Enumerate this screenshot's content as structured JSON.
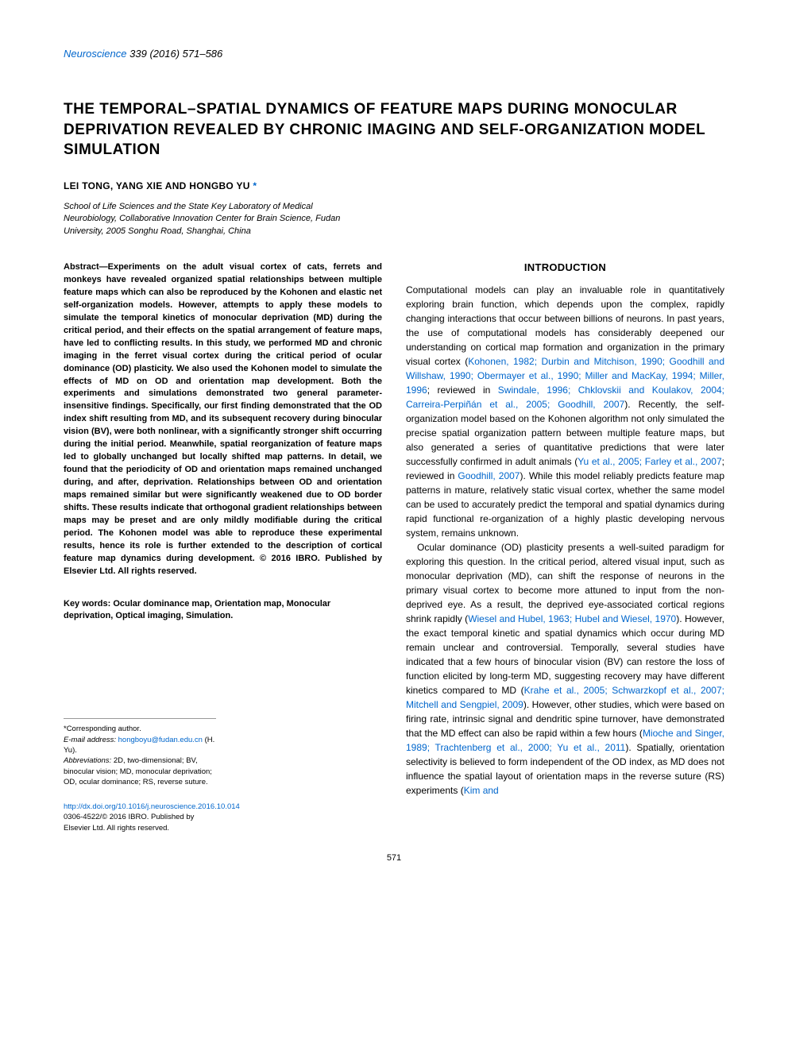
{
  "journal": {
    "name": "Neuroscience",
    "volume": "339",
    "year": "2016",
    "pages": "571–586",
    "name_color": "#0066cc"
  },
  "title": "THE TEMPORAL–SPATIAL DYNAMICS OF FEATURE MAPS DURING MONOCULAR DEPRIVATION REVEALED BY CHRONIC IMAGING AND SELF-ORGANIZATION MODEL SIMULATION",
  "authors_line": "LEI TONG, YANG XIE AND HONGBO YU",
  "corresponding_marker": "*",
  "affiliation": "School of Life Sciences and the State Key Laboratory of Medical Neurobiology, Collaborative Innovation Center for Brain Science, Fudan University, 2005 Songhu Road, Shanghai, China",
  "abstract": {
    "label": "Abstract—",
    "text": "Experiments on the adult visual cortex of cats, ferrets and monkeys have revealed organized spatial relationships between multiple feature maps which can also be reproduced by the Kohonen and elastic net self-organization models. However, attempts to apply these models to simulate the temporal kinetics of monocular deprivation (MD) during the critical period, and their effects on the spatial arrangement of feature maps, have led to conflicting results. In this study, we performed MD and chronic imaging in the ferret visual cortex during the critical period of ocular dominance (OD) plasticity. We also used the Kohonen model to simulate the effects of MD on OD and orientation map development. Both the experiments and simulations demonstrated two general parameter-insensitive findings. Specifically, our first finding demonstrated that the OD index shift resulting from MD, and its subsequent recovery during binocular vision (BV), were both nonlinear, with a significantly stronger shift occurring during the initial period. Meanwhile, spatial reorganization of feature maps led to globally unchanged but locally shifted map patterns. In detail, we found that the periodicity of OD and orientation maps remained unchanged during, and after, deprivation. Relationships between OD and orientation maps remained similar but were significantly weakened due to OD border shifts. These results indicate that orthogonal gradient relationships between maps may be preset and are only mildly modifiable during the critical period. The Kohonen model was able to reproduce these experimental results, hence its role is further extended to the description of cortical feature map dynamics during development. © 2016 IBRO. Published by Elsevier Ltd. All rights reserved."
  },
  "keywords": {
    "label": "Key words:",
    "text": "Ocular dominance map, Orientation map, Monocular deprivation, Optical imaging, Simulation."
  },
  "introduction": {
    "heading": "INTRODUCTION",
    "para1_pre": "Computational models can play an invaluable role in quantitatively exploring brain function, which depends upon the complex, rapidly changing interactions that occur between billions of neurons. In past years, the use of computational models has considerably deepened our understanding on cortical map formation and organization in the primary visual cortex (",
    "para1_cite1": "Kohonen, 1982; Durbin and Mitchison, 1990; Goodhill and Willshaw, 1990; Obermayer et al., 1990; Miller and MacKay, 1994; Miller, 1996",
    "para1_mid1": "; reviewed in ",
    "para1_cite2": "Swindale, 1996; Chklovskii and Koulakov, 2004; Carreira-Perpiñán et al., 2005; Goodhill, 2007",
    "para1_mid2": "). Recently, the self-organization model based on the Kohonen algorithm not only simulated the precise spatial organization pattern between multiple feature maps, but also generated a series of quantitative predictions that were later successfully confirmed in adult animals (",
    "para1_cite3": "Yu et al., 2005; Farley et al., 2007",
    "para1_mid3": "; reviewed in ",
    "para1_cite4": "Goodhill, 2007",
    "para1_post": "). While this model reliably predicts feature map patterns in mature, relatively static visual cortex, whether the same model can be used to accurately predict the temporal and spatial dynamics during rapid functional re-organization of a highly plastic developing nervous system, remains unknown.",
    "para2_pre": "Ocular dominance (OD) plasticity presents a well-suited paradigm for exploring this question. In the critical period, altered visual input, such as monocular deprivation (MD), can shift the response of neurons in the primary visual cortex to become more attuned to input from the non-deprived eye. As a result, the deprived eye-associated cortical regions shrink rapidly (",
    "para2_cite1": "Wiesel and Hubel, 1963; Hubel and Wiesel, 1970",
    "para2_mid1": "). However, the exact temporal kinetic and spatial dynamics which occur during MD remain unclear and controversial. Temporally, several studies have indicated that a few hours of binocular vision (BV) can restore the loss of function elicited by long-term MD, suggesting recovery may have different kinetics compared to MD (",
    "para2_cite2": "Krahe et al., 2005; Schwarzkopf et al., 2007; Mitchell and Sengpiel, 2009",
    "para2_mid2": "). However, other studies, which were based on firing rate, intrinsic signal and dendritic spine turnover, have demonstrated that the MD effect can also be rapid within a few hours (",
    "para2_cite3": "Mioche and Singer, 1989; Trachtenberg et al., 2000; Yu et al., 2011",
    "para2_mid3": "). Spatially, orientation selectivity is believed to form independent of the OD index, as MD does not influence the spatial layout of orientation maps in the reverse suture (RS) experiments (",
    "para2_cite4": "Kim and"
  },
  "footnotes": {
    "corresponding": "*Corresponding author.",
    "email_label": "E-mail address:",
    "email": "hongboyu@fudan.edu.cn",
    "email_name": "(H. Yu).",
    "abbrev_label": "Abbreviations:",
    "abbrev_text": "2D, two-dimensional; BV, binocular vision; MD, monocular deprivation; OD, ocular dominance; RS, reverse suture."
  },
  "doi": {
    "url": "http://dx.doi.org/10.1016/j.neuroscience.2016.10.014",
    "copyright": "0306-4522/© 2016 IBRO. Published by Elsevier Ltd. All rights reserved."
  },
  "page_number": "571",
  "colors": {
    "link": "#0066cc",
    "text": "#000000",
    "background": "#ffffff",
    "rule": "#999999"
  },
  "typography": {
    "title_fontsize": 19,
    "body_fontsize": 12,
    "abstract_fontsize": 11,
    "footnote_fontsize": 9.5,
    "journal_fontsize": 13
  }
}
